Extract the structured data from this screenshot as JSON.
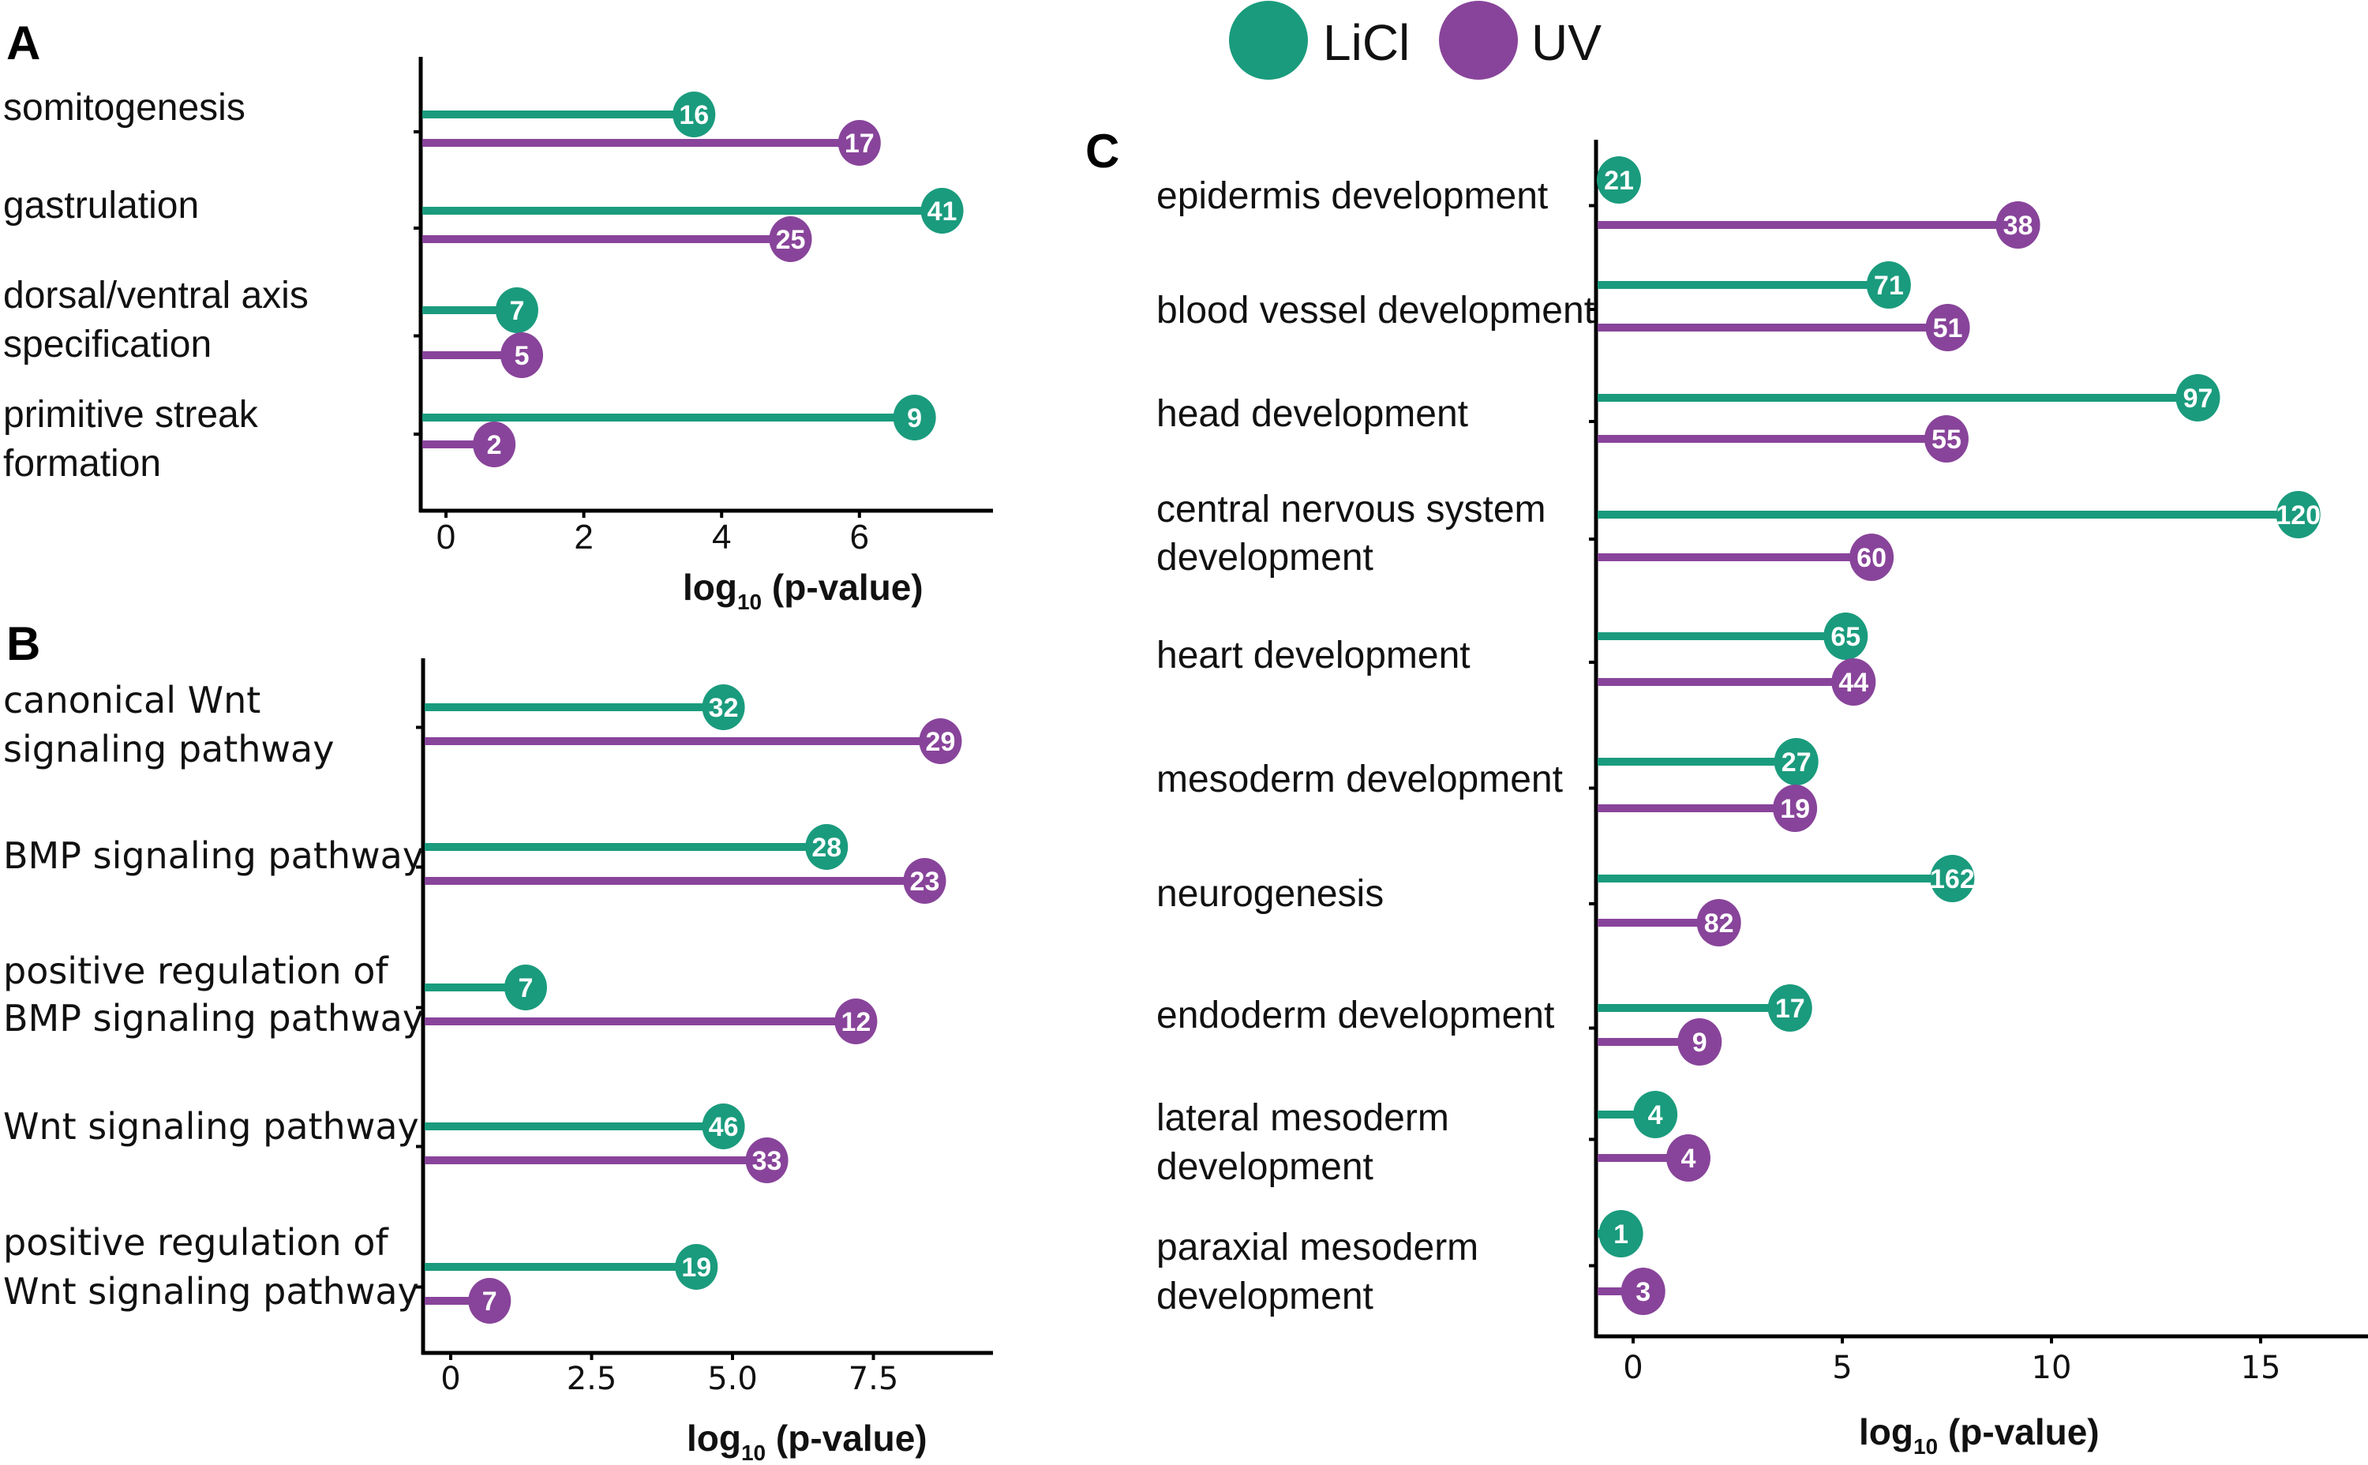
{
  "legend": [
    {
      "name": "LiCl",
      "color": "#1a9b7d"
    },
    {
      "name": "UV",
      "color": "#88449a"
    }
  ],
  "chart_data": [
    {
      "panel": "A",
      "type": "lollipop",
      "xlabel": "log10 (p-value)",
      "xlim": [
        -0.35,
        7.9
      ],
      "xticks": [
        "0",
        "2",
        "4",
        "6"
      ],
      "xtick_values": [
        0,
        2,
        4,
        6
      ],
      "categories": [
        {
          "label": [
            "somitogenesis"
          ],
          "LiCl": {
            "value": 3.6,
            "count": "16"
          },
          "UV": {
            "value": 6.0,
            "count": "17"
          }
        },
        {
          "label": [
            "gastrulation"
          ],
          "LiCl": {
            "value": 7.2,
            "count": "41"
          },
          "UV": {
            "value": 5.0,
            "count": "25"
          }
        },
        {
          "label": [
            "dorsal/ventral axis",
            "specification"
          ],
          "LiCl": {
            "value": 1.03,
            "count": "7"
          },
          "UV": {
            "value": 1.1,
            "count": "5"
          }
        },
        {
          "label": [
            "primitive streak",
            "formation"
          ],
          "LiCl": {
            "value": 6.8,
            "count": "9"
          },
          "UV": {
            "value": 0.7,
            "count": "2"
          }
        }
      ]
    },
    {
      "panel": "B",
      "type": "lollipop",
      "xlabel": "log10 (p-value)",
      "xlim": [
        -0.5,
        9.7
      ],
      "xticks": [
        "0",
        "2.5",
        "5.0",
        "7.5"
      ],
      "xtick_values": [
        0,
        2.5,
        5.0,
        7.5
      ],
      "categories": [
        {
          "label": [
            "canonical Wnt",
            "signaling pathway"
          ],
          "LiCl": {
            "value": 4.84,
            "count": "32"
          },
          "UV": {
            "value": 8.69,
            "count": "29"
          }
        },
        {
          "label": [
            "BMP signaling pathway"
          ],
          "LiCl": {
            "value": 6.67,
            "count": "28"
          },
          "UV": {
            "value": 8.41,
            "count": "23"
          }
        },
        {
          "label": [
            "positive regulation of",
            "BMP signaling pathway"
          ],
          "LiCl": {
            "value": 1.33,
            "count": "7"
          },
          "UV": {
            "value": 7.19,
            "count": "12"
          }
        },
        {
          "label": [
            "Wnt signaling pathway"
          ],
          "LiCl": {
            "value": 4.84,
            "count": "46"
          },
          "UV": {
            "value": 5.61,
            "count": "33"
          }
        },
        {
          "label": [
            "positive regulation of",
            "Wnt signaling pathway"
          ],
          "LiCl": {
            "value": 4.36,
            "count": "19"
          },
          "UV": {
            "value": 0.69,
            "count": "7"
          }
        }
      ]
    },
    {
      "panel": "C",
      "type": "lollipop",
      "xlabel": "log10 (p-value)",
      "xlim": [
        -0.9,
        17.6
      ],
      "xticks": [
        "0",
        "5",
        "10",
        "15"
      ],
      "xtick_values": [
        0,
        5,
        10,
        15
      ],
      "categories": [
        {
          "label": [
            "epidermis development"
          ],
          "LiCl": {
            "value": -0.34,
            "count": "21"
          },
          "UV": {
            "value": 9.2,
            "count": "38"
          }
        },
        {
          "label": [
            "blood vessel development"
          ],
          "LiCl": {
            "value": 6.11,
            "count": "71"
          },
          "UV": {
            "value": 7.52,
            "count": "51"
          }
        },
        {
          "label": [
            "head development"
          ],
          "LiCl": {
            "value": 13.5,
            "count": "97"
          },
          "UV": {
            "value": 7.49,
            "count": "55"
          }
        },
        {
          "label": [
            "central nervous system",
            "development"
          ],
          "LiCl": {
            "value": 15.9,
            "count": "120"
          },
          "UV": {
            "value": 5.7,
            "count": "60"
          }
        },
        {
          "label": [
            "heart development"
          ],
          "LiCl": {
            "value": 5.08,
            "count": "65"
          },
          "UV": {
            "value": 5.27,
            "count": "44"
          }
        },
        {
          "label": [
            "mesoderm development"
          ],
          "LiCl": {
            "value": 3.9,
            "count": "27"
          },
          "UV": {
            "value": 3.87,
            "count": "19"
          }
        },
        {
          "label": [
            "neurogenesis"
          ],
          "LiCl": {
            "value": 7.63,
            "count": "162"
          },
          "UV": {
            "value": 2.05,
            "count": "82"
          }
        },
        {
          "label": [
            "endoderm development"
          ],
          "LiCl": {
            "value": 3.75,
            "count": "17"
          },
          "UV": {
            "value": 1.59,
            "count": "9"
          }
        },
        {
          "label": [
            "lateral mesoderm",
            "development"
          ],
          "LiCl": {
            "value": 0.53,
            "count": "4"
          },
          "UV": {
            "value": 1.32,
            "count": "4"
          }
        },
        {
          "label": [
            "paraxial mesoderm",
            "development"
          ],
          "LiCl": {
            "value": -0.29,
            "count": "1"
          },
          "UV": {
            "value": 0.24,
            "count": "3"
          }
        }
      ]
    }
  ]
}
